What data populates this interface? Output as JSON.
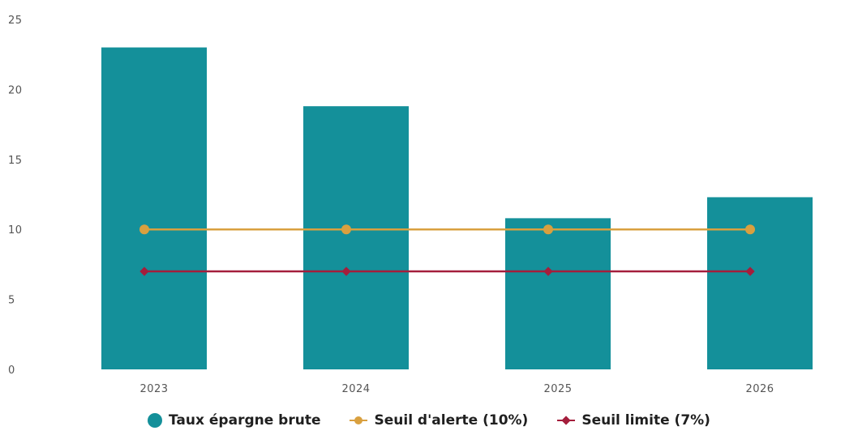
{
  "chart_data": {
    "type": "bar",
    "categories": [
      "2023",
      "2024",
      "2025",
      "2026"
    ],
    "ylim": [
      0,
      25
    ],
    "yticks": [
      0,
      5,
      10,
      15,
      20,
      25
    ],
    "grid": false,
    "legend_position": "bottom-center",
    "series": [
      {
        "name": "Taux épargne brute",
        "kind": "bar",
        "values": [
          23,
          18.8,
          10.8,
          12.3
        ],
        "color": "#14909a"
      },
      {
        "name": "Seuil d'alerte (10%)",
        "kind": "line",
        "marker": "circle",
        "values": [
          10,
          10,
          10,
          10
        ],
        "color": "#d9a03f"
      },
      {
        "name": "Seuil limite (7%)",
        "kind": "line",
        "marker": "diamond",
        "values": [
          7,
          7,
          7,
          7
        ],
        "color": "#a41e3c"
      }
    ]
  },
  "legend": {
    "bar_label": "Taux épargne brute",
    "alert_label": "Seuil d'alerte (10%)",
    "limit_label": "Seuil limite (7%)"
  }
}
